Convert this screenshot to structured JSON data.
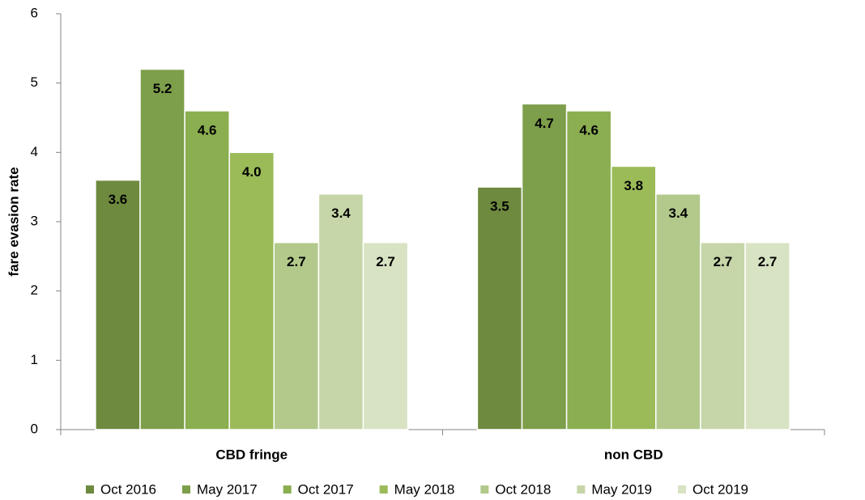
{
  "chart_data": {
    "type": "bar",
    "y_label": "fare evasion rate",
    "categories": [
      "CBD fringe",
      "non CBD"
    ],
    "series": [
      {
        "name": "Oct 2016",
        "color": "#6e8a3e",
        "values": [
          3.6,
          3.5
        ],
        "value_labels": [
          "3.6",
          "3.5"
        ]
      },
      {
        "name": "May 2017",
        "color": "#7d9e4a",
        "values": [
          5.2,
          4.7
        ],
        "value_labels": [
          "5.2",
          "4.7"
        ]
      },
      {
        "name": "Oct 2017",
        "color": "#8bae51",
        "values": [
          4.6,
          4.6
        ],
        "value_labels": [
          "4.6",
          "4.6"
        ]
      },
      {
        "name": "May 2018",
        "color": "#9bbb59",
        "values": [
          4.0,
          3.8
        ],
        "value_labels": [
          "4.0",
          "3.8"
        ]
      },
      {
        "name": "Oct 2018",
        "color": "#b2c98b",
        "values": [
          2.7,
          3.4
        ],
        "value_labels": [
          "2.7",
          "3.4"
        ]
      },
      {
        "name": "May 2019",
        "color": "#c6d6a8",
        "values": [
          3.4,
          2.7
        ],
        "value_labels": [
          "3.4",
          "2.7"
        ]
      },
      {
        "name": "Oct 2019",
        "color": "#d8e3c3",
        "values": [
          2.7,
          2.7
        ],
        "value_labels": [
          "2.7",
          "2.7"
        ]
      }
    ],
    "ylim": [
      0,
      6
    ],
    "yticks": [
      0,
      1,
      2,
      3,
      4,
      5,
      6
    ],
    "grid": false
  }
}
